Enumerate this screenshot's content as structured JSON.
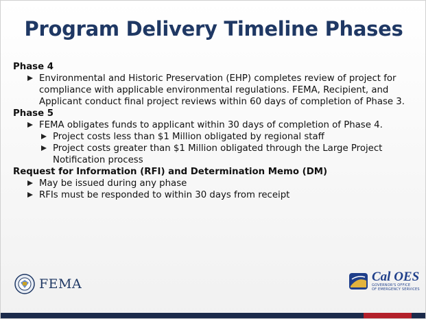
{
  "title": "Program Delivery Timeline Phases",
  "sections": [
    {
      "heading": "Phase 4",
      "items": [
        {
          "text": "Environmental and Historic Preservation (EHP) completes review of project for compliance with applicable environmental regulations. FEMA, Recipient, and Applicant conduct final project reviews within 60 days of completion of Phase 3."
        }
      ]
    },
    {
      "heading": "Phase 5",
      "items": [
        {
          "text": "FEMA obligates funds to applicant within 30 days of completion of Phase 4.",
          "subitems": [
            "Project costs less than $1 Million obligated by regional staff",
            "Project costs greater than $1 Million obligated through the Large Project Notification process"
          ]
        }
      ]
    },
    {
      "heading": "Request for Information (RFI) and Determination Memo (DM)",
      "items": [
        {
          "text": "May be issued during any phase"
        },
        {
          "text": "RFIs must be responded to within 30 days from receipt"
        }
      ]
    }
  ],
  "footer": {
    "fema": "FEMA",
    "caloes": "Cal OES",
    "caloes_sub": [
      "GOVERNOR'S OFFICE",
      "OF EMERGENCY SERVICES"
    ]
  }
}
